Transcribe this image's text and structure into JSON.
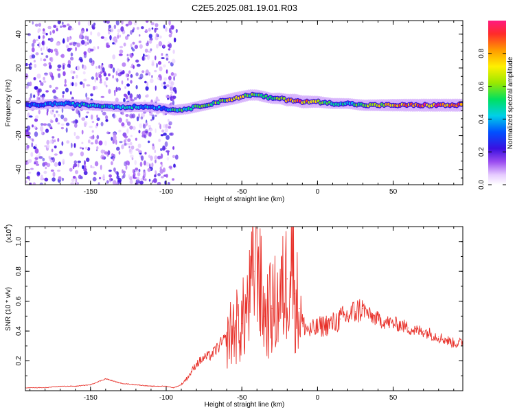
{
  "figure_title": "C2E5.2025.081.19.01.R03",
  "colors": {
    "snr_line": "#e8322b",
    "axis": "#000000",
    "background": "#ffffff"
  },
  "chart_data": [
    {
      "type": "heatmap",
      "title": "C2E5.2025.081.19.01.R03",
      "xlabel": "Height of straight line (km)",
      "ylabel": "Frequency (Hz)",
      "xlim": [
        -193,
        96
      ],
      "ylim": [
        -49,
        48
      ],
      "x_ticks": [
        -150,
        -100,
        -50,
        0,
        50
      ],
      "x_tick_labels": [
        "-150",
        "-100",
        "-50",
        "0",
        "50"
      ],
      "y_ticks": [
        -40,
        -20,
        0,
        20,
        40
      ],
      "y_tick_labels": [
        "-40",
        "-20",
        "0",
        "20",
        "40"
      ],
      "colorbar": {
        "label": "Normalized spectral amplitude",
        "range": [
          0,
          1
        ],
        "ticks": [
          0.0,
          0.2,
          0.4,
          0.6,
          0.8
        ],
        "tick_labels": [
          "0.0",
          "0.2",
          "0.4",
          "0.6",
          "0.8"
        ]
      },
      "signal_ridge": {
        "description": "Main spectral ridge frequency vs height",
        "x": [
          -190,
          -170,
          -150,
          -130,
          -110,
          -100,
          -95,
          -85,
          -75,
          -65,
          -55,
          -50,
          -45,
          -40,
          -35,
          -30,
          -25,
          -20,
          -15,
          -10,
          -5,
          0,
          10,
          20,
          30,
          50,
          70,
          96
        ],
        "freq": [
          -2,
          -1,
          -2,
          -3,
          -3,
          -4,
          -5,
          -4,
          -2,
          0,
          2,
          3,
          4,
          4,
          3,
          2,
          2,
          1,
          1,
          0,
          0,
          0,
          -1,
          -1,
          -2,
          -2,
          -2,
          -2
        ],
        "amplitude": [
          0.35,
          0.4,
          0.45,
          0.45,
          0.4,
          0.4,
          0.5,
          0.55,
          0.6,
          0.65,
          0.75,
          0.7,
          0.6,
          0.55,
          0.6,
          0.55,
          0.65,
          0.8,
          0.85,
          0.9,
          0.8,
          0.7,
          0.55,
          0.5,
          0.6,
          0.8,
          0.9,
          0.9
        ]
      },
      "noise_region": {
        "x_range": [
          -193,
          -93
        ],
        "description": "Scattered low-amplitude noise across all frequencies"
      }
    },
    {
      "type": "line",
      "xlabel": "Height of straight line (km)",
      "ylabel": "SNR (10 * v/v)",
      "y_scale_label": "(x10",
      "y_scale_exp": "4",
      "xlim": [
        -193,
        96
      ],
      "ylim": [
        0,
        1.1
      ],
      "x_ticks": [
        -150,
        -100,
        -50,
        0,
        50
      ],
      "x_tick_labels": [
        "-150",
        "-100",
        "-50",
        "0",
        "50"
      ],
      "y_ticks": [
        0.2,
        0.4,
        0.6,
        0.8,
        1.0
      ],
      "y_tick_labels": [
        "0.2",
        "0.4",
        "0.6",
        "0.8",
        "1.0"
      ],
      "series": [
        {
          "name": "SNR",
          "x": [
            -193,
            -180,
            -170,
            -160,
            -150,
            -145,
            -140,
            -130,
            -120,
            -110,
            -100,
            -95,
            -90,
            -85,
            -80,
            -75,
            -70,
            -65,
            -60,
            -55,
            -50,
            -45,
            -42,
            -40,
            -38,
            -35,
            -30,
            -25,
            -20,
            -17,
            -15,
            -12,
            -10,
            -5,
            0,
            5,
            10,
            15,
            20,
            25,
            30,
            35,
            40,
            45,
            50,
            55,
            60,
            65,
            70,
            75,
            80,
            85,
            90,
            96
          ],
          "values": [
            0.02,
            0.02,
            0.03,
            0.03,
            0.04,
            0.06,
            0.08,
            0.05,
            0.04,
            0.03,
            0.03,
            0.02,
            0.04,
            0.1,
            0.18,
            0.22,
            0.24,
            0.3,
            0.35,
            0.42,
            0.45,
            0.6,
            0.8,
            1.1,
            0.7,
            0.5,
            0.55,
            0.6,
            0.75,
            0.95,
            0.65,
            0.55,
            0.45,
            0.4,
            0.42,
            0.44,
            0.45,
            0.48,
            0.5,
            0.53,
            0.55,
            0.5,
            0.48,
            0.46,
            0.45,
            0.44,
            0.42,
            0.4,
            0.4,
            0.38,
            0.36,
            0.34,
            0.32,
            0.32
          ]
        }
      ]
    }
  ]
}
